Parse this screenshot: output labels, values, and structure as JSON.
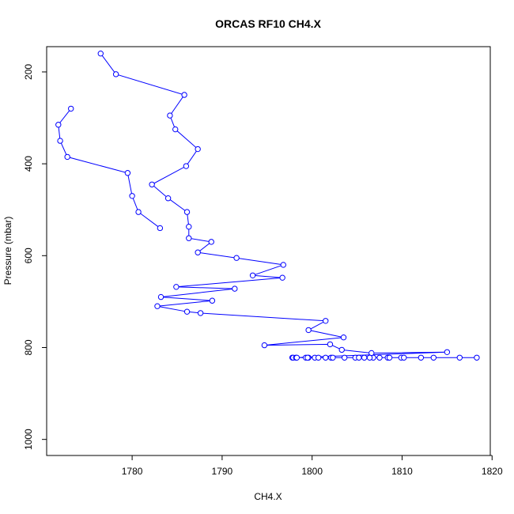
{
  "chart_data": {
    "type": "line",
    "title": "ORCAS RF10 CH4.X",
    "xlabel": "CH4.X",
    "ylabel": "Pressure (mbar)",
    "xlim": [
      1770.5,
      1819.8
    ],
    "ylim": [
      1035,
      145
    ],
    "y_reversed": true,
    "grid": false,
    "legend": "none",
    "x_ticks": [
      1780,
      1790,
      1800,
      1810,
      1820
    ],
    "y_ticks": [
      200,
      400,
      600,
      800,
      1000
    ],
    "line_color": "#0000ff",
    "marker": "open-circle",
    "series": [
      {
        "x": [
          1776.5,
          1778.2,
          1785.8,
          1784.2,
          1784.8,
          1787.3,
          1786.0,
          1782.2,
          1784.0,
          1786.1,
          1786.3,
          1786.3,
          1788.8,
          1787.3,
          1791.6,
          1796.8,
          1793.4,
          1796.7,
          1784.9,
          1791.4,
          1783.2,
          1788.9,
          1782.8,
          1786.1,
          1787.6,
          1801.5,
          1799.6,
          1803.5,
          1794.7,
          1802.0,
          1803.3,
          1806.6,
          1815.0,
          1797.8,
          1818.3,
          1797.9,
          1798.2,
          1799.3,
          1799.6,
          1800.3,
          1801.5,
          1802.1,
          1803.6,
          1804.8,
          1805.8,
          1806.8,
          1807.5,
          1808.4,
          1809.9,
          1812.1,
          1813.5,
          1816.4,
          1798.3,
          1799.5,
          1800.7,
          1802.3,
          1805.2,
          1806.4,
          1808.6,
          1810.2
        ],
        "y": [
          160,
          205,
          250,
          295,
          325,
          368,
          405,
          445,
          475,
          505,
          537,
          562,
          570,
          593,
          605,
          620,
          643,
          648,
          668,
          672,
          690,
          698,
          710,
          722,
          725,
          742,
          762,
          778,
          795,
          793,
          805,
          812,
          810,
          822,
          822,
          822,
          822,
          822,
          822,
          822,
          822,
          822,
          822,
          822,
          822,
          822,
          822,
          822,
          822,
          822,
          822,
          822,
          822,
          822,
          822,
          822,
          822,
          822,
          822,
          822
        ]
      },
      {
        "x": [
          1773.2,
          1771.8,
          1772.0,
          1772.8,
          1779.5,
          1780.0,
          1780.7,
          1783.1
        ],
        "y": [
          280,
          315,
          350,
          385,
          420,
          470,
          505,
          540
        ]
      }
    ]
  }
}
